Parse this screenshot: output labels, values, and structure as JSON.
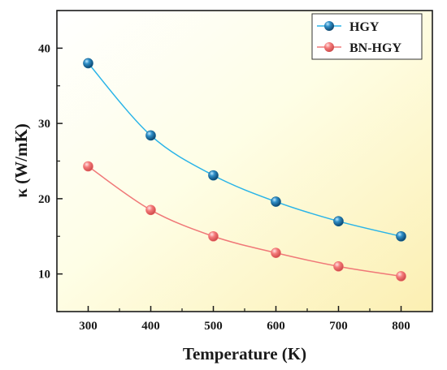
{
  "chart_data": {
    "type": "line",
    "title": "",
    "xlabel": "Temperature (K)",
    "ylabel": "κ (W/mK)",
    "x": [
      300,
      400,
      500,
      600,
      700,
      800
    ],
    "xlim": [
      250,
      850
    ],
    "ylim": [
      5,
      45
    ],
    "xticks": [
      "300",
      "400",
      "500",
      "600",
      "700",
      "800"
    ],
    "yticks": [
      "10",
      "20",
      "30",
      "40"
    ],
    "legend": "top-right",
    "grid": false,
    "series": [
      {
        "name": "HGY",
        "values": [
          38.0,
          28.4,
          23.1,
          19.6,
          17.0,
          15.0
        ],
        "line_color": "#2ab4e8",
        "marker_color": "#0d5f92"
      },
      {
        "name": "BN-HGY",
        "values": [
          24.3,
          18.5,
          15.0,
          12.8,
          11.0,
          9.7
        ],
        "line_color": "#f07878",
        "marker_color": "#f06e6e"
      }
    ]
  }
}
